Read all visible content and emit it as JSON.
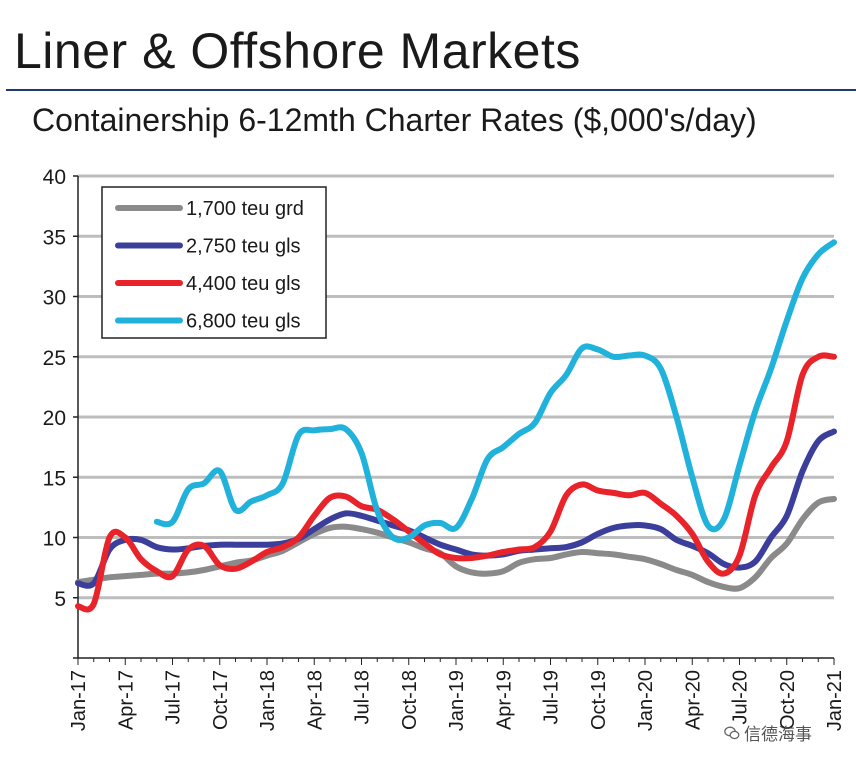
{
  "page": {
    "title": "Liner & Offshore Markets",
    "watermark": "信德海事"
  },
  "chart_data": {
    "type": "line",
    "title": "Containership 6-12mth Charter Rates ($,000's/day)",
    "xlabel": "",
    "ylabel": "",
    "ylim": [
      0,
      40
    ],
    "yticks": [
      5,
      10,
      15,
      20,
      25,
      30,
      35,
      40
    ],
    "grid": true,
    "legend_position": "top-left",
    "x_tick_labels": [
      "Jan-17",
      "Apr-17",
      "Jul-17",
      "Oct-17",
      "Jan-18",
      "Apr-18",
      "Jul-18",
      "Oct-18",
      "Jan-19",
      "Apr-19",
      "Jul-19",
      "Oct-19",
      "Jan-20",
      "Apr-20",
      "Jul-20",
      "Oct-20",
      "Jan-21"
    ],
    "x_month_index_range": [
      0,
      48
    ],
    "series": [
      {
        "name": "1,700 teu grd",
        "color": "#8a8a8a",
        "points": [
          [
            0,
            6.3
          ],
          [
            1,
            6.5
          ],
          [
            2,
            6.7
          ],
          [
            3,
            6.8
          ],
          [
            4,
            6.9
          ],
          [
            5,
            7.0
          ],
          [
            6,
            7.0
          ],
          [
            7,
            7.1
          ],
          [
            8,
            7.3
          ],
          [
            9,
            7.6
          ],
          [
            10,
            7.9
          ],
          [
            11,
            8.1
          ],
          [
            12,
            8.5
          ],
          [
            13,
            8.9
          ],
          [
            14,
            9.6
          ],
          [
            15,
            10.3
          ],
          [
            16,
            10.8
          ],
          [
            17,
            10.9
          ],
          [
            18,
            10.7
          ],
          [
            19,
            10.4
          ],
          [
            20,
            10.0
          ],
          [
            21,
            9.6
          ],
          [
            22,
            9.1
          ],
          [
            23,
            8.7
          ],
          [
            24,
            7.6
          ],
          [
            25,
            7.1
          ],
          [
            26,
            7.0
          ],
          [
            27,
            7.2
          ],
          [
            28,
            7.9
          ],
          [
            29,
            8.2
          ],
          [
            30,
            8.3
          ],
          [
            31,
            8.6
          ],
          [
            32,
            8.8
          ],
          [
            33,
            8.7
          ],
          [
            34,
            8.6
          ],
          [
            35,
            8.4
          ],
          [
            36,
            8.2
          ],
          [
            37,
            7.8
          ],
          [
            38,
            7.3
          ],
          [
            39,
            6.9
          ],
          [
            40,
            6.3
          ],
          [
            41,
            5.9
          ],
          [
            42,
            5.8
          ],
          [
            43,
            6.7
          ],
          [
            44,
            8.3
          ],
          [
            45,
            9.5
          ],
          [
            46,
            11.5
          ],
          [
            47,
            12.9
          ],
          [
            48,
            13.2
          ]
        ]
      },
      {
        "name": "2,750 teu gls",
        "color": "#3b3f9b",
        "points": [
          [
            0,
            6.2
          ],
          [
            1,
            6.2
          ],
          [
            2,
            9.0
          ],
          [
            3,
            9.8
          ],
          [
            4,
            9.8
          ],
          [
            5,
            9.2
          ],
          [
            6,
            9.0
          ],
          [
            7,
            9.1
          ],
          [
            8,
            9.3
          ],
          [
            9,
            9.4
          ],
          [
            10,
            9.4
          ],
          [
            11,
            9.4
          ],
          [
            12,
            9.4
          ],
          [
            13,
            9.5
          ],
          [
            14,
            9.9
          ],
          [
            15,
            10.7
          ],
          [
            16,
            11.5
          ],
          [
            17,
            12.0
          ],
          [
            18,
            11.8
          ],
          [
            19,
            11.4
          ],
          [
            20,
            11.0
          ],
          [
            21,
            10.6
          ],
          [
            22,
            10.0
          ],
          [
            23,
            9.4
          ],
          [
            24,
            9.0
          ],
          [
            25,
            8.6
          ],
          [
            26,
            8.5
          ],
          [
            27,
            8.6
          ],
          [
            28,
            8.9
          ],
          [
            29,
            9.0
          ],
          [
            30,
            9.1
          ],
          [
            31,
            9.2
          ],
          [
            32,
            9.6
          ],
          [
            33,
            10.3
          ],
          [
            34,
            10.8
          ],
          [
            35,
            11.0
          ],
          [
            36,
            11.0
          ],
          [
            37,
            10.7
          ],
          [
            38,
            9.8
          ],
          [
            39,
            9.3
          ],
          [
            40,
            8.7
          ],
          [
            41,
            7.8
          ],
          [
            42,
            7.5
          ],
          [
            43,
            8.0
          ],
          [
            44,
            10.0
          ],
          [
            45,
            11.8
          ],
          [
            46,
            15.5
          ],
          [
            47,
            18.0
          ],
          [
            48,
            18.8
          ]
        ]
      },
      {
        "name": "4,400 teu gls",
        "color": "#e8232a",
        "points": [
          [
            0,
            4.3
          ],
          [
            1,
            4.5
          ],
          [
            2,
            10.0
          ],
          [
            3,
            10.0
          ],
          [
            4,
            8.2
          ],
          [
            5,
            7.2
          ],
          [
            6,
            6.8
          ],
          [
            7,
            9.0
          ],
          [
            8,
            9.3
          ],
          [
            9,
            7.7
          ],
          [
            10,
            7.4
          ],
          [
            11,
            8.0
          ],
          [
            12,
            8.8
          ],
          [
            13,
            9.2
          ],
          [
            14,
            10.0
          ],
          [
            15,
            11.8
          ],
          [
            16,
            13.3
          ],
          [
            17,
            13.4
          ],
          [
            18,
            12.6
          ],
          [
            19,
            12.3
          ],
          [
            20,
            11.5
          ],
          [
            21,
            10.5
          ],
          [
            22,
            9.5
          ],
          [
            23,
            8.6
          ],
          [
            24,
            8.3
          ],
          [
            25,
            8.3
          ],
          [
            26,
            8.5
          ],
          [
            27,
            8.8
          ],
          [
            28,
            9.0
          ],
          [
            29,
            9.2
          ],
          [
            30,
            10.5
          ],
          [
            31,
            13.5
          ],
          [
            32,
            14.4
          ],
          [
            33,
            13.9
          ],
          [
            34,
            13.7
          ],
          [
            35,
            13.5
          ],
          [
            36,
            13.7
          ],
          [
            37,
            12.8
          ],
          [
            38,
            11.8
          ],
          [
            39,
            10.3
          ],
          [
            40,
            8.0
          ],
          [
            41,
            7.0
          ],
          [
            42,
            8.5
          ],
          [
            43,
            13.5
          ],
          [
            44,
            15.8
          ],
          [
            45,
            18.0
          ],
          [
            46,
            23.5
          ],
          [
            47,
            25.0
          ],
          [
            48,
            25.0
          ]
        ]
      },
      {
        "name": "6,800 teu gls",
        "color": "#21b2dc",
        "points": [
          [
            5,
            11.3
          ],
          [
            6,
            11.3
          ],
          [
            7,
            14.0
          ],
          [
            8,
            14.5
          ],
          [
            9,
            15.5
          ],
          [
            10,
            12.3
          ],
          [
            11,
            13.0
          ],
          [
            12,
            13.5
          ],
          [
            13,
            14.5
          ],
          [
            14,
            18.5
          ],
          [
            15,
            18.9
          ],
          [
            16,
            19.0
          ],
          [
            17,
            19.0
          ],
          [
            18,
            17.0
          ],
          [
            19,
            12.2
          ],
          [
            20,
            10.0
          ],
          [
            21,
            10.0
          ],
          [
            22,
            11.0
          ],
          [
            23,
            11.2
          ],
          [
            24,
            10.8
          ],
          [
            25,
            13.2
          ],
          [
            26,
            16.5
          ],
          [
            27,
            17.5
          ],
          [
            28,
            18.6
          ],
          [
            29,
            19.5
          ],
          [
            30,
            22.0
          ],
          [
            31,
            23.5
          ],
          [
            32,
            25.7
          ],
          [
            33,
            25.6
          ],
          [
            34,
            25.0
          ],
          [
            35,
            25.1
          ],
          [
            36,
            25.1
          ],
          [
            37,
            24.0
          ],
          [
            38,
            20.0
          ],
          [
            39,
            15.0
          ],
          [
            40,
            11.0
          ],
          [
            41,
            11.5
          ],
          [
            42,
            16.0
          ],
          [
            43,
            20.5
          ],
          [
            44,
            24.0
          ],
          [
            45,
            28.0
          ],
          [
            46,
            31.5
          ],
          [
            47,
            33.5
          ],
          [
            48,
            34.5
          ]
        ]
      }
    ]
  }
}
